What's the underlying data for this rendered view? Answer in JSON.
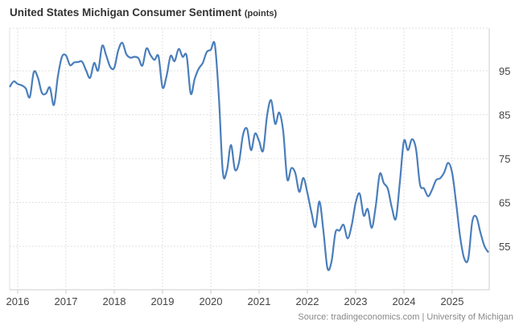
{
  "chart_data": {
    "type": "line",
    "title": "United States Michigan Consumer Sentiment",
    "unit": "(points)",
    "source": "Source: tradingeconomics.com | University of Michigan",
    "xlabel": "",
    "ylabel": "",
    "ylim": [
      45,
      105
    ],
    "x_start": "2015-11",
    "y_ticks": [
      95,
      85,
      75,
      65,
      55
    ],
    "x_ticks": [
      "2016",
      "2017",
      "2018",
      "2019",
      "2020",
      "2021",
      "2022",
      "2023",
      "2024",
      "2025"
    ],
    "grid": true,
    "y_axis_side": "right",
    "line_color": "#4a7ebb",
    "series": [
      {
        "values": [
          91.3,
          92.6,
          92.0,
          91.7,
          91.0,
          89.0,
          94.7,
          93.5,
          90.0,
          89.8,
          91.2,
          87.2,
          93.8,
          98.2,
          98.5,
          96.3,
          96.9,
          97.0,
          97.1,
          95.1,
          93.4,
          96.8,
          95.1,
          100.7,
          98.5,
          95.9,
          95.7,
          99.7,
          101.4,
          98.8,
          98.0,
          98.2,
          97.9,
          96.2,
          100.1,
          98.6,
          97.5,
          98.3,
          91.2,
          93.8,
          98.4,
          97.2,
          100.0,
          98.2,
          98.4,
          89.8,
          93.2,
          95.5,
          96.8,
          99.3,
          99.8,
          101.0,
          89.1,
          71.8,
          72.3,
          78.1,
          72.5,
          74.1,
          80.4,
          81.8,
          76.9,
          80.7,
          79.0,
          76.8,
          84.9,
          88.3,
          82.9,
          85.5,
          81.2,
          70.3,
          72.8,
          71.7,
          67.4,
          70.6,
          67.2,
          62.8,
          59.4,
          65.2,
          58.4,
          50.0,
          51.5,
          58.2,
          58.6,
          59.9,
          56.8,
          59.7,
          64.9,
          67.0,
          62.0,
          63.5,
          59.2,
          64.2,
          71.5,
          69.4,
          68.1,
          63.8,
          61.3,
          69.7,
          79.0,
          76.9,
          79.4,
          77.2,
          69.1,
          68.2,
          66.4,
          67.9,
          70.1,
          70.5,
          71.8,
          74.0,
          71.7,
          64.7,
          57.0,
          52.2,
          52.2,
          60.7,
          61.7,
          58.2,
          55.1,
          53.6
        ]
      }
    ]
  }
}
